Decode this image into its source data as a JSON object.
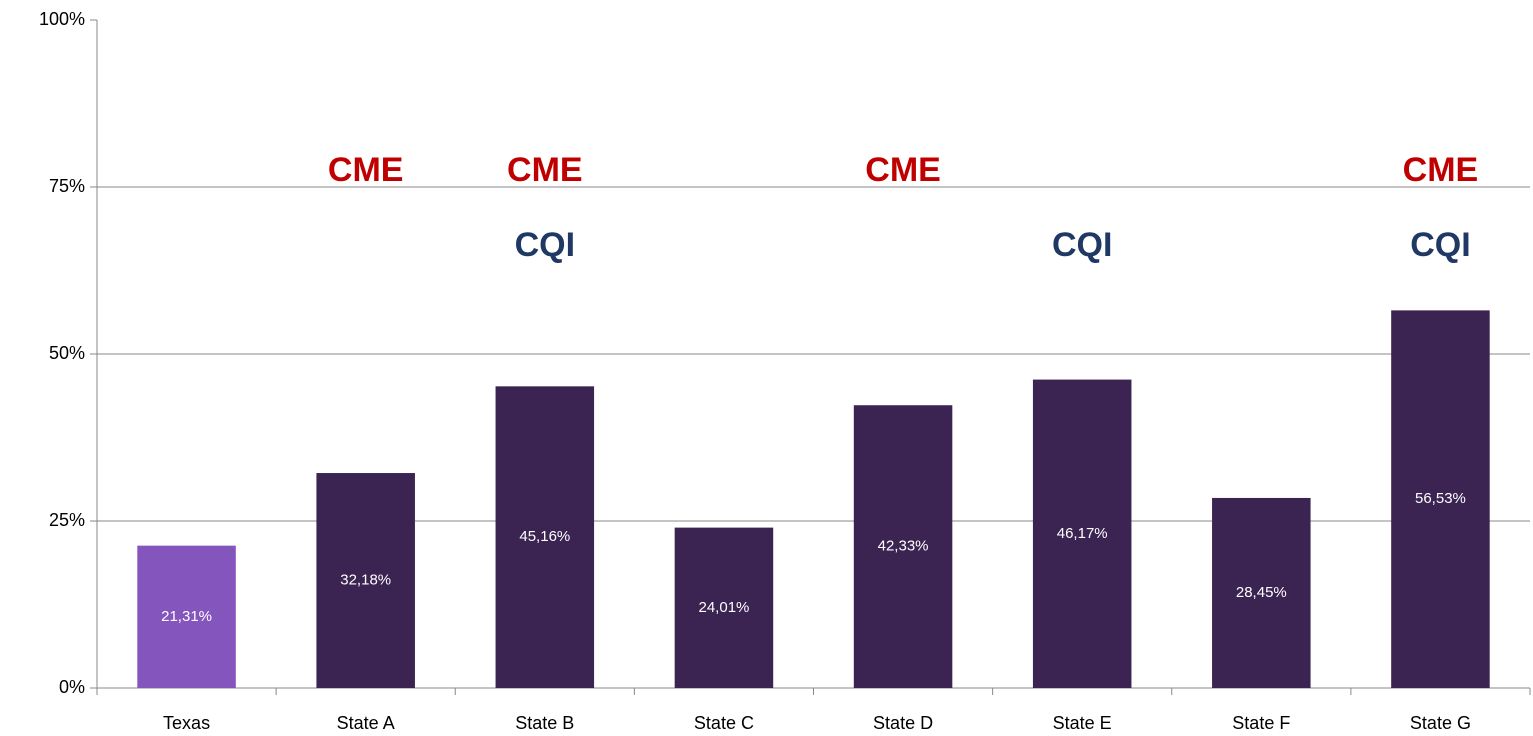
{
  "chart_data": {
    "type": "bar",
    "categories": [
      "Texas",
      "State A",
      "State B",
      "State C",
      "State D",
      "State E",
      "State F",
      "State G"
    ],
    "values": [
      21.31,
      32.18,
      45.16,
      24.01,
      42.33,
      46.17,
      28.45,
      56.53
    ],
    "value_labels": [
      "21,31%",
      "32,18%",
      "45,16%",
      "24,01%",
      "42,33%",
      "46,17%",
      "28,45%",
      "56,53%"
    ],
    "colors": [
      "#8456bd",
      "#3b2352",
      "#3b2352",
      "#3b2352",
      "#3b2352",
      "#3b2352",
      "#3b2352",
      "#3b2352"
    ],
    "ylim": [
      0,
      100
    ],
    "yticks": [
      {
        "value": 0,
        "label": "0%"
      },
      {
        "value": 25,
        "label": "25%"
      },
      {
        "value": 50,
        "label": "50%"
      },
      {
        "value": 75,
        "label": "75%"
      },
      {
        "value": 100,
        "label": "100%"
      }
    ],
    "grid": true,
    "annotations": [
      {
        "text": "CME",
        "color": "#c00000",
        "categories": [
          "State A",
          "State B",
          "State D",
          "State G"
        ]
      },
      {
        "text": "CQI",
        "color": "#1f3864",
        "categories": [
          "State B",
          "State E",
          "State G"
        ]
      }
    ]
  }
}
